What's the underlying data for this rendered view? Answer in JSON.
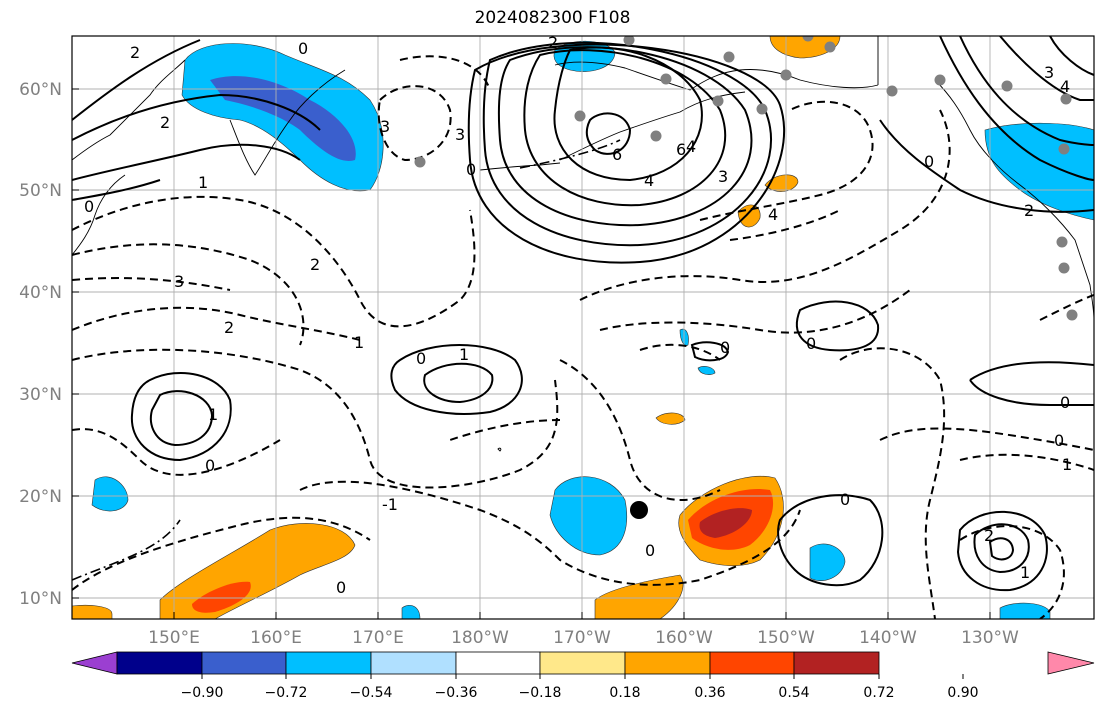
{
  "title": "2024082300 F108",
  "map": {
    "lat_labels": [
      "60°N",
      "50°N",
      "40°N",
      "30°N",
      "20°N",
      "10°N"
    ],
    "lon_labels": [
      "150°E",
      "160°E",
      "170°E",
      "180°W",
      "170°W",
      "160°W",
      "150°W",
      "140°W",
      "130°W"
    ],
    "contour_labels": [
      "2",
      "2",
      "2",
      "1",
      "0",
      "0",
      "3",
      "3",
      "3",
      "2",
      "2",
      "1",
      "0",
      "1",
      "0",
      "6",
      "6",
      "4",
      "4",
      "3",
      "4",
      "3",
      "4",
      "2",
      "0",
      "0",
      "0",
      "1",
      "0",
      "0",
      "1",
      "0",
      "-1",
      "0",
      "0",
      "1",
      "2",
      "0"
    ],
    "marker_color": "#000000"
  },
  "colorbar": {
    "tick_labels": [
      "−0.90",
      "−0.72",
      "−0.54",
      "−0.36",
      "−0.18",
      "0.18",
      "0.36",
      "0.54",
      "0.72",
      "0.90"
    ],
    "colors": [
      "#9b3fd1",
      "#00008b",
      "#3a5fcd",
      "#00bfff",
      "#b0e0ff",
      "#ffffff",
      "#ffe88a",
      "#ffa500",
      "#ff4500",
      "#b22222",
      "#ff88aa"
    ]
  }
}
